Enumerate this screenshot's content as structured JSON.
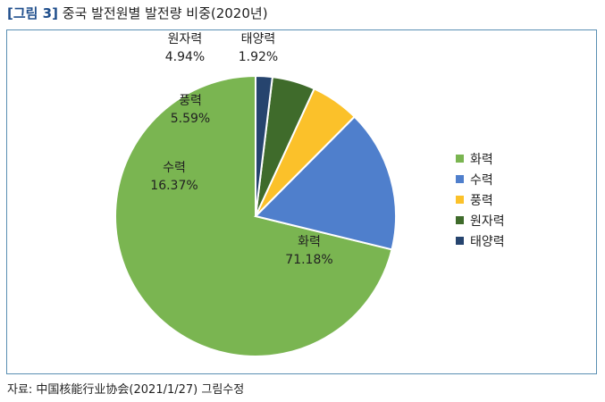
{
  "figure": {
    "tag": "[그림 3]",
    "title": "중국 발전원별 발전량 비중(2020년)",
    "source": "자료: 中国核能行业协会(2021/1/27) 그림수정"
  },
  "chart_data": {
    "type": "pie",
    "title": "",
    "slices": [
      {
        "name": "화력",
        "value": 71.18,
        "label": "71.18%",
        "color": "#7ab551"
      },
      {
        "name": "수력",
        "value": 16.37,
        "label": "16.37%",
        "color": "#4f7fcc"
      },
      {
        "name": "풍력",
        "value": 5.59,
        "label": "5.59%",
        "color": "#fbc12a"
      },
      {
        "name": "원자력",
        "value": 4.94,
        "label": "4.94%",
        "color": "#3f6b2b"
      },
      {
        "name": "태양력",
        "value": 1.92,
        "label": "1.92%",
        "color": "#26446e"
      }
    ],
    "legend": [
      "화력",
      "수력",
      "풍력",
      "원자력",
      "태양력"
    ],
    "legend_position": "right",
    "start": "12 o'clock",
    "direction": "counter-clockwise"
  }
}
